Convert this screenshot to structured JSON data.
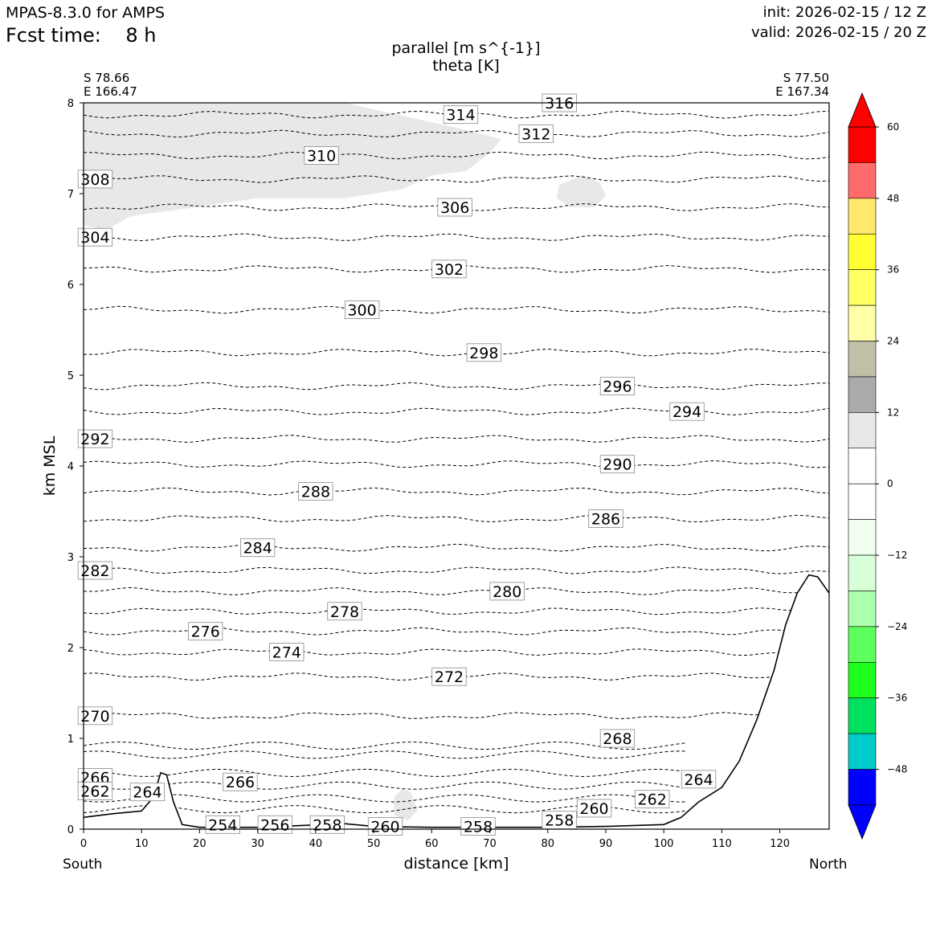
{
  "header": {
    "model": "MPAS-8.3.0 for AMPS",
    "fcst_label": "Fcst time:",
    "fcst_value": "8 h",
    "init": "init: 2026-02-15 / 12 Z",
    "valid": "valid: 2026-02-15 / 20 Z"
  },
  "corners": {
    "left_lat": "S 78.66",
    "left_lon": "E 166.47",
    "right_lat": "S 77.50",
    "right_lon": "E 167.34"
  },
  "end_labels": {
    "south": "South",
    "north": "North"
  },
  "chart_data": {
    "type": "contour-cross-section",
    "title": [
      "parallel [m s^{-1}]",
      "theta [K]"
    ],
    "xlabel": "distance [km]",
    "ylabel": "km MSL",
    "xlim": [
      0,
      128.5
    ],
    "ylim": [
      0,
      8
    ],
    "xticks": [
      0,
      10,
      20,
      30,
      40,
      50,
      60,
      70,
      80,
      90,
      100,
      110,
      120
    ],
    "yticks": [
      0,
      1,
      2,
      3,
      4,
      5,
      6,
      7,
      8
    ],
    "theta_contours": [
      {
        "level": 270,
        "height_km": 1.25
      },
      {
        "level": 272,
        "height_km": 1.68
      },
      {
        "level": 274,
        "height_km": 1.95
      },
      {
        "level": 276,
        "height_km": 2.18
      },
      {
        "level": 278,
        "height_km": 2.4
      },
      {
        "level": 280,
        "height_km": 2.62
      },
      {
        "level": 282,
        "height_km": 2.85
      },
      {
        "level": 284,
        "height_km": 3.1
      },
      {
        "level": 286,
        "height_km": 3.42
      },
      {
        "level": 288,
        "height_km": 3.72
      },
      {
        "level": 290,
        "height_km": 4.02
      },
      {
        "level": 292,
        "height_km": 4.3
      },
      {
        "level": 294,
        "height_km": 4.6
      },
      {
        "level": 296,
        "height_km": 4.88
      },
      {
        "level": 298,
        "height_km": 5.25
      },
      {
        "level": 300,
        "height_km": 5.72
      },
      {
        "level": 302,
        "height_km": 6.17
      },
      {
        "level": 304,
        "height_km": 6.52
      },
      {
        "level": 306,
        "height_km": 6.85
      },
      {
        "level": 308,
        "height_km": 7.16
      },
      {
        "level": 310,
        "height_km": 7.42
      },
      {
        "level": 312,
        "height_km": 7.66
      },
      {
        "level": 314,
        "height_km": 7.87
      }
    ],
    "low_level_theta_labels": [
      {
        "text": "266",
        "x": 2,
        "y": 0.57
      },
      {
        "text": "262",
        "x": 2,
        "y": 0.42
      },
      {
        "text": "264",
        "x": 11,
        "y": 0.41
      },
      {
        "text": "266",
        "x": 27,
        "y": 0.52
      },
      {
        "text": "268",
        "x": 92,
        "y": 1.0
      },
      {
        "text": "264",
        "x": 106,
        "y": 0.55
      },
      {
        "text": "262",
        "x": 98,
        "y": 0.33
      },
      {
        "text": "260",
        "x": 88,
        "y": 0.23
      },
      {
        "text": "258",
        "x": 82,
        "y": 0.1
      },
      {
        "text": "258",
        "x": 68,
        "y": 0.03
      },
      {
        "text": "260",
        "x": 52,
        "y": 0.03
      },
      {
        "text": "258",
        "x": 42,
        "y": 0.05
      },
      {
        "text": "256",
        "x": 33,
        "y": 0.05
      },
      {
        "text": "254",
        "x": 24,
        "y": 0.05
      },
      {
        "text": "316",
        "x": 82,
        "y": 8.0
      }
    ],
    "terrain_km": [
      [
        0,
        0.13
      ],
      [
        5,
        0.17
      ],
      [
        10,
        0.2
      ],
      [
        12,
        0.35
      ],
      [
        13.3,
        0.62
      ],
      [
        14.3,
        0.6
      ],
      [
        15.5,
        0.3
      ],
      [
        17,
        0.05
      ],
      [
        20,
        0.02
      ],
      [
        30,
        0.02
      ],
      [
        45,
        0.06
      ],
      [
        50,
        0.03
      ],
      [
        60,
        0.02
      ],
      [
        80,
        0.02
      ],
      [
        90,
        0.03
      ],
      [
        100,
        0.05
      ],
      [
        103,
        0.13
      ],
      [
        106,
        0.3
      ],
      [
        110,
        0.46
      ],
      [
        113,
        0.75
      ],
      [
        116,
        1.2
      ],
      [
        119,
        1.75
      ],
      [
        121,
        2.25
      ],
      [
        123,
        2.6
      ],
      [
        125,
        2.8
      ],
      [
        126.5,
        2.78
      ],
      [
        128.5,
        2.6
      ]
    ],
    "shaded_parallel_regions_km": [
      {
        "name": "upper-shade",
        "polygon": [
          [
            0,
            8
          ],
          [
            45,
            8
          ],
          [
            66,
            7.7
          ],
          [
            72,
            7.6
          ],
          [
            70,
            7.45
          ],
          [
            66,
            7.25
          ],
          [
            60,
            7.2
          ],
          [
            55,
            7.05
          ],
          [
            45,
            6.95
          ],
          [
            30,
            6.95
          ],
          [
            17,
            6.83
          ],
          [
            8,
            6.75
          ],
          [
            4,
            6.6
          ],
          [
            0,
            6.65
          ]
        ]
      },
      {
        "name": "mid-blob",
        "polygon": [
          [
            82,
            7.1
          ],
          [
            86,
            7.2
          ],
          [
            89,
            7.12
          ],
          [
            90,
            6.98
          ],
          [
            88,
            6.85
          ],
          [
            84,
            6.85
          ],
          [
            81.5,
            6.95
          ]
        ]
      },
      {
        "name": "low-blob",
        "polygon": [
          [
            53.5,
            0.35
          ],
          [
            55,
            0.45
          ],
          [
            56.5,
            0.4
          ],
          [
            57.5,
            0.2
          ],
          [
            56,
            0.1
          ],
          [
            53.5,
            0.15
          ]
        ]
      }
    ],
    "colorbar": {
      "label_values": [
        60,
        48,
        36,
        24,
        12,
        0,
        -12,
        -24,
        -36,
        -48
      ],
      "levels": [
        54,
        48,
        42,
        36,
        30,
        24,
        18,
        12,
        6,
        0,
        -6,
        -12,
        -18,
        -24,
        -30,
        -36,
        -42,
        -48,
        -54
      ],
      "colors": [
        "#ff0000",
        "#ff6b6b",
        "#ffe86b",
        "#ffff33",
        "#ffff66",
        "#ffffa8",
        "#c0c0a8",
        "#aaaaaa",
        "#e8e8e8",
        "#ffffff",
        "#ffffff",
        "#f0fff0",
        "#d8ffd8",
        "#acffac",
        "#5cff5c",
        "#1eff1e",
        "#00e060",
        "#00cccc",
        "#0000ff"
      ],
      "over_color": "#ff0000",
      "under_color": "#0000ff"
    }
  }
}
